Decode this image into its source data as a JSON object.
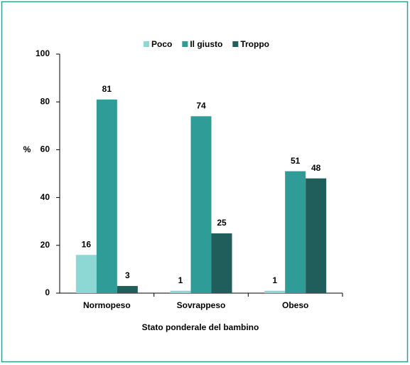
{
  "chart_data": {
    "type": "bar",
    "x_label": "Stato ponderale  del bambino",
    "y_label": "%",
    "categories": [
      "Normopeso",
      "Sovrappeso",
      "Obeso"
    ],
    "series": [
      {
        "name": "Poco",
        "color": "#8dd8d5",
        "values": [
          16,
          1,
          1
        ]
      },
      {
        "name": "Il giusto",
        "color": "#2f9c97",
        "values": [
          81,
          74,
          51
        ]
      },
      {
        "name": "Troppo",
        "color": "#1f5e5b",
        "values": [
          3,
          25,
          48
        ]
      }
    ],
    "ylim": [
      0,
      100
    ],
    "yticks": [
      0,
      20,
      40,
      60,
      80,
      100
    ]
  }
}
